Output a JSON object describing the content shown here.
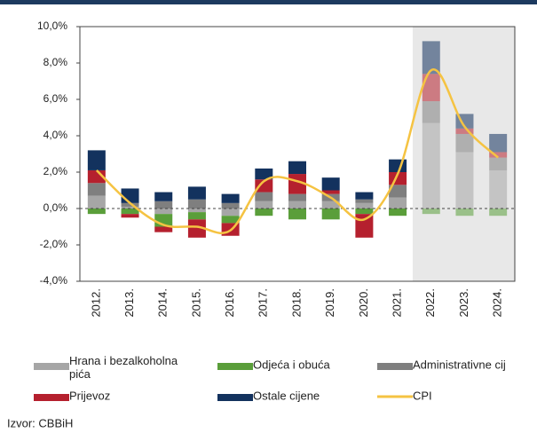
{
  "chart_data": {
    "type": "bar",
    "categories": [
      "2012.",
      "2013.",
      "2014.",
      "2015.",
      "2016.",
      "2017.",
      "2018.",
      "2019.",
      "2020.",
      "2021.",
      "2022.",
      "2023.",
      "2024."
    ],
    "series": [
      {
        "name": "Hrana i bezalkoholna pića",
        "color": "#a6a6a6",
        "values": [
          0.7,
          0.1,
          -0.3,
          -0.2,
          -0.4,
          0.4,
          0.4,
          0.4,
          0.3,
          0.6,
          4.7,
          3.1,
          2.1
        ]
      },
      {
        "name": "Odjeća i obuća",
        "color": "#5a9e3a",
        "values": [
          -0.3,
          -0.3,
          -0.7,
          -0.4,
          -0.4,
          -0.4,
          -0.6,
          -0.6,
          -0.3,
          -0.4,
          -0.3,
          -0.4,
          -0.4
        ]
      },
      {
        "name": "Administrativne cij",
        "color": "#7f7f7f",
        "values": [
          0.7,
          0.2,
          0.4,
          0.5,
          0.3,
          0.5,
          0.4,
          0.4,
          0.2,
          0.7,
          1.2,
          1.0,
          0.7
        ]
      },
      {
        "name": "Prijevoz",
        "color": "#b5202e",
        "values": [
          0.7,
          -0.2,
          -0.3,
          -1.0,
          -0.7,
          0.7,
          1.1,
          0.2,
          -1.3,
          0.7,
          1.5,
          0.3,
          0.3
        ]
      },
      {
        "name": "Ostale cijene",
        "color": "#13325e",
        "values": [
          1.1,
          0.8,
          0.5,
          0.7,
          0.5,
          0.6,
          0.7,
          0.7,
          0.4,
          0.7,
          1.8,
          0.8,
          1.0
        ]
      },
      {
        "name": "CPI",
        "color": "#f5c342",
        "type": "line",
        "values": [
          2.1,
          0.3,
          -0.9,
          -1.0,
          -1.2,
          1.5,
          1.5,
          0.6,
          -0.6,
          1.9,
          7.6,
          4.5,
          2.8
        ]
      }
    ],
    "ylim": [
      -4,
      10
    ],
    "yticks": [
      {
        "value": -4,
        "label": "-4,0%"
      },
      {
        "value": -2,
        "label": "-2,0%"
      },
      {
        "value": 0,
        "label": "0,0%"
      },
      {
        "value": 2,
        "label": "2,0%"
      },
      {
        "value": 4,
        "label": "4,0%"
      },
      {
        "value": 6,
        "label": "6,0%"
      },
      {
        "value": 8,
        "label": "8,0%"
      },
      {
        "value": 10,
        "label": "10,0%"
      }
    ],
    "source": "Izvor: CBBiH"
  }
}
